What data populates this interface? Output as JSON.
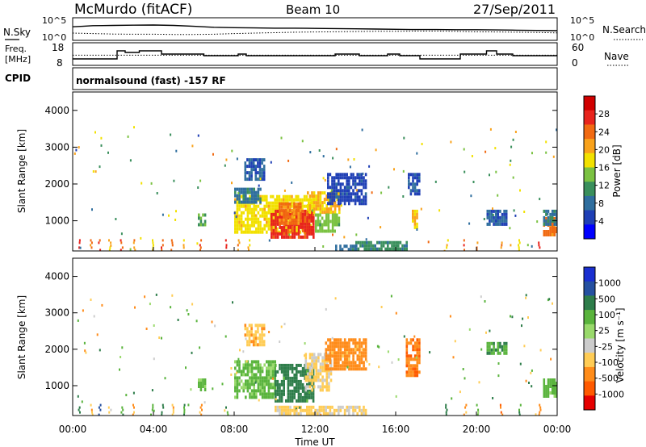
{
  "header": {
    "station": "McMurdo (fitACF)",
    "beam": "Beam 10",
    "date": "27/Sep/2011"
  },
  "colors": {
    "power": [
      "#0000ff",
      "#1f3fb5",
      "#2f6e9e",
      "#3a8f5c",
      "#7bc242",
      "#f2e100",
      "#f9a21b",
      "#f16a12",
      "#e8241d",
      "#d00000"
    ],
    "velocity": [
      "#e50000",
      "#ff5a00",
      "#ff8c1a",
      "#ffcc55",
      "#cccccc",
      "#99d96b",
      "#5ab43d",
      "#2e7d4a",
      "#2550a0",
      "#1a2fd0"
    ]
  },
  "chart_data": [
    {
      "type": "line",
      "panel": "noise",
      "ylabel_left": "N.Sky",
      "ylabel_right": "N.Search",
      "y_ticks_left": [
        "10^5",
        "10^0"
      ],
      "y_ticks_right": [
        "10^5",
        "10^0"
      ],
      "xlim": [
        0,
        24
      ],
      "series": [
        {
          "style": "solid",
          "x": [
            0,
            0.5,
            1,
            2,
            3,
            4,
            5,
            6,
            7,
            8,
            9,
            10,
            11,
            12,
            13,
            14,
            15,
            16,
            17,
            18,
            19,
            20,
            21,
            22,
            23,
            24
          ],
          "y": [
            0.6,
            0.62,
            0.65,
            0.66,
            0.67,
            0.68,
            0.66,
            0.62,
            0.58,
            0.56,
            0.55,
            0.54,
            0.54,
            0.53,
            0.52,
            0.51,
            0.5,
            0.49,
            0.48,
            0.48,
            0.47,
            0.47,
            0.46,
            0.45,
            0.44,
            0.43
          ]
        },
        {
          "style": "dotted",
          "x": [
            0,
            1,
            2,
            3,
            4,
            5,
            6,
            7,
            8,
            9,
            10,
            11,
            12,
            13,
            14,
            15,
            16,
            17,
            18,
            19,
            20,
            21,
            22,
            23,
            24
          ],
          "y": [
            0.32,
            0.3,
            0.28,
            0.27,
            0.27,
            0.26,
            0.26,
            0.27,
            0.3,
            0.32,
            0.34,
            0.36,
            0.37,
            0.38,
            0.39,
            0.4,
            0.4,
            0.41,
            0.41,
            0.4,
            0.38,
            0.37,
            0.36,
            0.35,
            0.33
          ]
        }
      ]
    },
    {
      "type": "line",
      "panel": "frequency",
      "ylabel_left": "Freq.",
      "ylabel_left_unit": "[MHz]",
      "ylabel_right": "Nave",
      "y_ticks_left": [
        "18",
        "8"
      ],
      "y_ticks_right": [
        "60",
        "0"
      ],
      "xlim": [
        0,
        24
      ],
      "series": [
        {
          "style": "solid",
          "x": [
            0,
            2.2,
            2.2,
            2.6,
            2.6,
            3.3,
            3.3,
            4.4,
            4.4,
            6.5,
            6.5,
            8.2,
            8.2,
            8.6,
            8.6,
            11.0,
            11.0,
            13.0,
            13.0,
            14.2,
            14.2,
            15.6,
            15.6,
            16.2,
            16.2,
            17.2,
            17.2,
            19.2,
            19.2,
            20.5,
            20.5,
            21.0,
            21.0,
            21.8,
            21.8,
            24
          ],
          "y": [
            10,
            10,
            15,
            15,
            14,
            14,
            15,
            15,
            13,
            13,
            12,
            12,
            13,
            13,
            12,
            12,
            12,
            12,
            13,
            13,
            12,
            12,
            13,
            13,
            12,
            12,
            10,
            10,
            13,
            13,
            15,
            15,
            13,
            13,
            12,
            12
          ]
        },
        {
          "style": "dotted",
          "x": [
            0,
            24
          ],
          "y": [
            12.3,
            12.3
          ]
        }
      ]
    },
    {
      "type": "label",
      "panel": "cpid",
      "label": "CPID",
      "text": "normalsound (fast) -157 RF"
    },
    {
      "type": "heatmap",
      "panel": "power",
      "ylabel": "Slant Range [km]",
      "y_ticks": [
        1000,
        2000,
        3000,
        4000
      ],
      "ylim": [
        180,
        4500
      ],
      "xlim": [
        0,
        24
      ],
      "colorbar": {
        "label": "Power [dB]",
        "ticks": [
          "28",
          "24",
          "20",
          "16",
          "12",
          "8",
          "4"
        ],
        "range": [
          0,
          32
        ]
      },
      "regions": [
        {
          "x": [
            8.0,
            11.9
          ],
          "y": [
            700,
            1700
          ],
          "v": 18
        },
        {
          "x": [
            9.8,
            11.9
          ],
          "y": [
            550,
            1300
          ],
          "v": 28
        },
        {
          "x": [
            10.2,
            11.3
          ],
          "y": [
            900,
            1500
          ],
          "v": 24
        },
        {
          "x": [
            11.6,
            13.2
          ],
          "y": [
            1200,
            1800
          ],
          "v": 20
        },
        {
          "x": [
            12.0,
            13.2
          ],
          "y": [
            700,
            1200
          ],
          "v": 14
        },
        {
          "x": [
            12.6,
            14.5
          ],
          "y": [
            1500,
            2300
          ],
          "v": 4
        },
        {
          "x": [
            8.5,
            9.5
          ],
          "y": [
            2100,
            2700
          ],
          "v": 6
        },
        {
          "x": [
            8.0,
            9.3
          ],
          "y": [
            1500,
            1900
          ],
          "v": 8
        },
        {
          "x": [
            16.6,
            17.2
          ],
          "y": [
            1700,
            2300
          ],
          "v": 5
        },
        {
          "x": [
            16.8,
            17.1
          ],
          "y": [
            800,
            1300
          ],
          "v": 20
        },
        {
          "x": [
            23.3,
            24.0
          ],
          "y": [
            600,
            1100
          ],
          "v": 24
        },
        {
          "x": [
            23.3,
            24.0
          ],
          "y": [
            900,
            1300
          ],
          "v": 8
        },
        {
          "x": [
            14.0,
            16.5
          ],
          "y": [
            200,
            450
          ],
          "v": 10
        },
        {
          "x": [
            13.0,
            14.0
          ],
          "y": [
            200,
            350
          ],
          "v": 8
        },
        {
          "x": [
            20.5,
            21.5
          ],
          "y": [
            900,
            1300
          ],
          "v": 6
        },
        {
          "x": [
            6.2,
            6.6
          ],
          "y": [
            900,
            1200
          ],
          "v": 12
        }
      ],
      "spikes": [
        {
          "x": 0.3,
          "v": 28
        },
        {
          "x": 0.9,
          "v": 24
        },
        {
          "x": 1.3,
          "v": 28
        },
        {
          "x": 1.8,
          "v": 20
        },
        {
          "x": 2.4,
          "v": 26
        },
        {
          "x": 3.0,
          "v": 22
        },
        {
          "x": 3.9,
          "v": 16
        },
        {
          "x": 4.4,
          "v": 28
        },
        {
          "x": 4.9,
          "v": 24
        },
        {
          "x": 5.5,
          "v": 20
        },
        {
          "x": 6.3,
          "v": 26
        },
        {
          "x": 7.6,
          "v": 28
        },
        {
          "x": 8.2,
          "v": 24
        },
        {
          "x": 8.7,
          "v": 20
        },
        {
          "x": 18.5,
          "v": 20
        },
        {
          "x": 19.4,
          "v": 26
        },
        {
          "x": 20.0,
          "v": 24
        },
        {
          "x": 21.2,
          "v": 22
        },
        {
          "x": 22.1,
          "v": 18
        },
        {
          "x": 23.1,
          "v": 28
        }
      ]
    },
    {
      "type": "heatmap",
      "panel": "velocity",
      "ylabel": "Slant Range [km]",
      "y_ticks": [
        1000,
        2000,
        3000,
        4000
      ],
      "ylim": [
        180,
        4500
      ],
      "xlim": [
        0,
        24
      ],
      "xlabel": "Time UT",
      "x_ticks": [
        "00:00",
        "04:00",
        "08:00",
        "12:00",
        "16:00",
        "20:00",
        "00:00"
      ],
      "colorbar": {
        "label": "Velocity [m s⁻¹]",
        "ticks": [
          "1000",
          "500",
          "100",
          "25",
          "-25",
          "-100",
          "-500",
          "-1000"
        ],
        "range": [
          -1000,
          1000
        ]
      },
      "regions": [
        {
          "x": [
            8.0,
            10.0
          ],
          "y": [
            700,
            1700
          ],
          "v": 80
        },
        {
          "x": [
            10.0,
            11.9
          ],
          "y": [
            600,
            1600
          ],
          "v": 300
        },
        {
          "x": [
            11.5,
            12.8
          ],
          "y": [
            900,
            1900
          ],
          "v": -60
        },
        {
          "x": [
            12.5,
            14.5
          ],
          "y": [
            1500,
            2300
          ],
          "v": -300
        },
        {
          "x": [
            8.5,
            9.5
          ],
          "y": [
            2100,
            2700
          ],
          "v": -150
        },
        {
          "x": [
            16.5,
            17.2
          ],
          "y": [
            1300,
            2300
          ],
          "v": -400
        },
        {
          "x": [
            23.3,
            24.0
          ],
          "y": [
            700,
            1200
          ],
          "v": 100
        },
        {
          "x": [
            10.0,
            14.5
          ],
          "y": [
            200,
            450
          ],
          "v": -80
        },
        {
          "x": [
            20.5,
            21.5
          ],
          "y": [
            1900,
            2200
          ],
          "v": 150
        },
        {
          "x": [
            6.2,
            6.6
          ],
          "y": [
            900,
            1200
          ],
          "v": 80
        }
      ],
      "spikes": [
        {
          "x": 0.3,
          "v": 300
        },
        {
          "x": 0.9,
          "v": -200
        },
        {
          "x": 1.3,
          "v": 600
        },
        {
          "x": 1.8,
          "v": -80
        },
        {
          "x": 2.4,
          "v": 150
        },
        {
          "x": 3.0,
          "v": -300
        },
        {
          "x": 3.9,
          "v": 80
        },
        {
          "x": 4.4,
          "v": 300
        },
        {
          "x": 4.9,
          "v": -150
        },
        {
          "x": 5.5,
          "v": 200
        },
        {
          "x": 6.3,
          "v": -300
        },
        {
          "x": 7.6,
          "v": 150
        },
        {
          "x": 18.5,
          "v": 300
        },
        {
          "x": 19.4,
          "v": -200
        },
        {
          "x": 20.0,
          "v": 100
        },
        {
          "x": 21.2,
          "v": -400
        },
        {
          "x": 22.1,
          "v": 200
        },
        {
          "x": 23.1,
          "v": -300
        }
      ]
    }
  ]
}
